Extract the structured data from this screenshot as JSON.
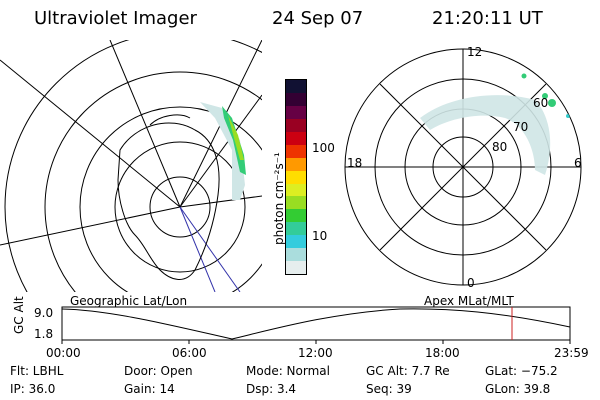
{
  "header": {
    "instrument": "Ultraviolet Imager",
    "date": "24 Sep 07",
    "time": "21:20:11 UT"
  },
  "left_panel": {
    "caption": "Geographic Lat/Lon"
  },
  "right_panel": {
    "caption": "Apex MLat/MLT",
    "mlt_labels": {
      "top": "12",
      "left": "18",
      "right": "6",
      "bottom": "0"
    },
    "lat_labels": [
      "60",
      "70",
      "80"
    ]
  },
  "colorbar": {
    "unit_label": "photon cm⁻²s⁻¹",
    "tick_labels": [
      "100",
      "10"
    ],
    "colors": [
      "#111133",
      "#330033",
      "#660044",
      "#990022",
      "#cc0011",
      "#ee3300",
      "#ff9900",
      "#ffdd00",
      "#ddee22",
      "#99dd22",
      "#33cc33",
      "#33cc99",
      "#33ccdd",
      "#aadddd",
      "#e6eeee"
    ]
  },
  "altitude_plot": {
    "ylabel": "GC Alt",
    "y_ticks": [
      "9.0",
      "1.8"
    ],
    "x_ticks": [
      "00:00",
      "06:00",
      "12:00",
      "18:00",
      "23:59"
    ],
    "current_marker_color": "#cc2222"
  },
  "info": {
    "flt": "Flt: LBHL",
    "ip": "IP: 36.0",
    "door": "Door: Open",
    "gain": "Gain: 14",
    "mode": "Mode: Normal",
    "dsp": "Dsp:     3.4",
    "gc_alt": "GC Alt: 7.7 Re",
    "seq": "Seq: 39",
    "glat": "GLat: −75.2",
    "glon": "GLon:  39.8"
  }
}
